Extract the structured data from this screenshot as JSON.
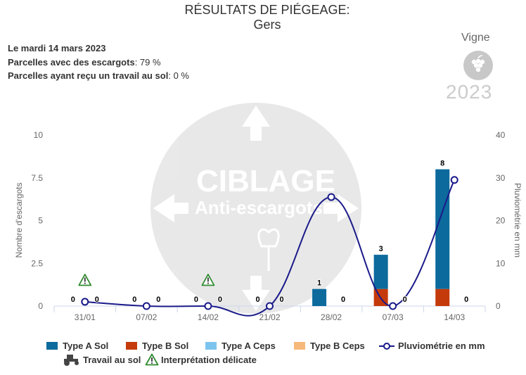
{
  "header": {
    "title_line1": "RÉSULTATS DE PIÉGEAGE:",
    "title_line2": "Gers"
  },
  "info": {
    "date": "Le mardi 14 mars 2023",
    "snails_label": "Parcelles avec des escargots",
    "snails_value": ": 79 %",
    "soilwork_label": "Parcelles ayant reçu un travail au sol",
    "soilwork_value": ": 0 %"
  },
  "badge": {
    "crop": "Vigne",
    "year": "2023",
    "icon": "grape-icon"
  },
  "watermark": {
    "line1": "CIBLAGE",
    "line2": "Anti-escargots"
  },
  "colors": {
    "type_a_sol": "#0c6a9c",
    "type_b_sol": "#c53a0a",
    "type_a_ceps": "#7cc4ee",
    "type_b_ceps": "#f7b97a",
    "rain": "#1a1a8a",
    "warning": "#2e8b2e"
  },
  "chart_data": {
    "type": "bar",
    "categories": [
      "31/01",
      "07/02",
      "14/02",
      "21/02",
      "28/02",
      "07/03",
      "14/03"
    ],
    "series": [
      {
        "name": "Type A Sol",
        "values": [
          0,
          0,
          0,
          0,
          1,
          2,
          7
        ]
      },
      {
        "name": "Type B Sol",
        "values": [
          0,
          0,
          0,
          0,
          0,
          1,
          1
        ]
      },
      {
        "name": "Type A Ceps",
        "values": [
          0,
          0,
          0,
          0,
          0,
          0,
          0
        ]
      },
      {
        "name": "Type B Ceps",
        "values": [
          0,
          0,
          0,
          0,
          0,
          0,
          0
        ]
      }
    ],
    "sol_totals": [
      "0",
      "0",
      "0",
      "0",
      "1",
      "3",
      "8"
    ],
    "ceps_totals": [
      "0",
      "0",
      "0",
      "0",
      "0",
      "0",
      "0"
    ],
    "line_series": {
      "name": "Pluviométrie en mm",
      "values": [
        1,
        0,
        0,
        0,
        25.5,
        0,
        29.5
      ]
    },
    "warnings": [
      "31/01",
      "14/02"
    ],
    "y_left": {
      "label": "Nombre d'escargots",
      "range": [
        0,
        10
      ],
      "ticks": [
        "0",
        "2.5",
        "5",
        "7.5",
        "10"
      ]
    },
    "y_right": {
      "label": "Pluviométrie en mm",
      "range": [
        0,
        40
      ],
      "ticks": [
        "0",
        "10",
        "20",
        "30",
        "40"
      ]
    },
    "grid": false
  },
  "legend": {
    "type_a_sol": "Type A Sol",
    "type_b_sol": "Type B Sol",
    "type_a_ceps": "Type A Ceps",
    "type_b_ceps": "Type B Ceps",
    "rain": "Pluviométrie en mm",
    "soil_work": "Travail au sol",
    "delicate": "Interprétation délicate"
  }
}
